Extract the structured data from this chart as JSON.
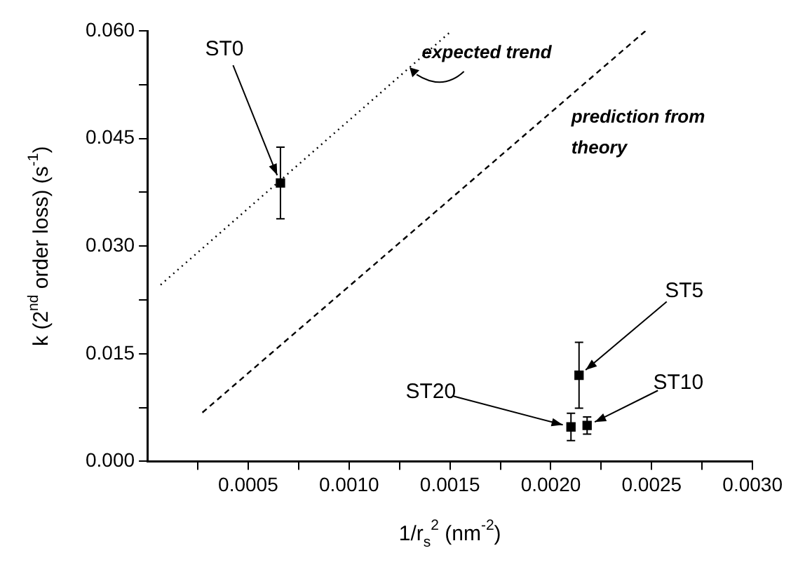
{
  "chart_data": {
    "type": "scatter",
    "xlabel": "1/r$_{s}$$^{2}$ (nm$^{-2}$)",
    "ylabel": "k (2$^{nd}$ order loss) (s$^{-1}$)",
    "xlim": [
      0,
      0.003
    ],
    "ylim": [
      0,
      0.06
    ],
    "xticks": [
      {
        "value": 0.00025,
        "label": null
      },
      {
        "value": 0.0005,
        "label": "0.0005"
      },
      {
        "value": 0.00075,
        "label": null
      },
      {
        "value": 0.001,
        "label": "0.0010"
      },
      {
        "value": 0.00125,
        "label": null
      },
      {
        "value": 0.0015,
        "label": "0.0015"
      },
      {
        "value": 0.00175,
        "label": null
      },
      {
        "value": 0.002,
        "label": "0.0020"
      },
      {
        "value": 0.00225,
        "label": null
      },
      {
        "value": 0.0025,
        "label": "0.0025"
      },
      {
        "value": 0.00275,
        "label": null
      },
      {
        "value": 0.003,
        "label": "0.0030"
      }
    ],
    "yticks": [
      {
        "value": 0,
        "label": "0.000"
      },
      {
        "value": 0.0075,
        "label": null
      },
      {
        "value": 0.015,
        "label": "0.015"
      },
      {
        "value": 0.0225,
        "label": null
      },
      {
        "value": 0.03,
        "label": "0.030"
      },
      {
        "value": 0.0375,
        "label": null
      },
      {
        "value": 0.045,
        "label": "0.045"
      },
      {
        "value": 0.0525,
        "label": null
      },
      {
        "value": 0.06,
        "label": "0.060"
      }
    ],
    "grid": false,
    "legend": false,
    "series": [
      {
        "color": "#000000",
        "marker": "square",
        "x": [
          0.00066,
          0.00214,
          0.0021,
          0.00218
        ],
        "values": [
          0.0388,
          0.012,
          0.0048,
          0.005
        ],
        "errors": [
          0.005,
          0.0046,
          0.0019,
          0.0012
        ]
      },
      {
        "type": "line",
        "name": "expected trend",
        "color": "#000000",
        "line_style": "dotted",
        "x": [
          6.6e-05,
          0.0015
        ],
        "values": [
          0.0246,
          0.0598
        ]
      },
      {
        "type": "line",
        "name": "prediction from theory",
        "color": "#000000",
        "line_style": "dashed",
        "x": [
          0.000273,
          0.00247
        ],
        "values": [
          0.0068,
          0.06
        ]
      }
    ],
    "annotations": [
      {
        "text": "ST0",
        "x": 0.00066,
        "y": 0.0388
      },
      {
        "text": "ST5",
        "x": 0.00214,
        "y": 0.012
      },
      {
        "text": "ST20",
        "x": 0.0021,
        "y": 0.0048
      },
      {
        "text": "ST10",
        "x": 0.00218,
        "y": 0.005
      }
    ]
  }
}
